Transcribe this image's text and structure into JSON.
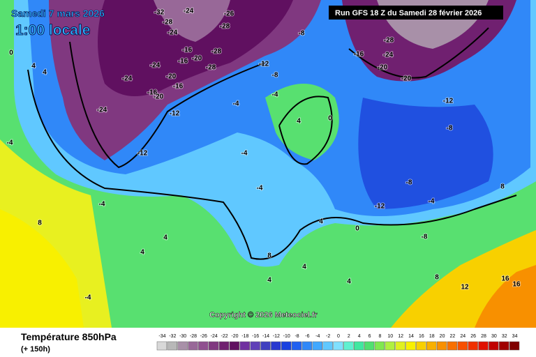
{
  "header": {
    "date": "Samedi 7 mars 2026",
    "time": "1:00 locale",
    "run": "Run GFS 18 Z du Samedi 28 février 2026"
  },
  "copyright": "Copyright © 2026 Meteociel.fr",
  "footer": {
    "title": "Température 850hPa",
    "lead": "(+ 150h)"
  },
  "legend": {
    "values": [
      -34,
      -32,
      -30,
      -28,
      -26,
      -24,
      -22,
      -20,
      -18,
      -16,
      -14,
      -12,
      -10,
      -8,
      -6,
      -4,
      -2,
      0,
      2,
      4,
      6,
      8,
      10,
      12,
      14,
      16,
      18,
      20,
      22,
      24,
      26,
      28,
      30,
      32,
      34
    ],
    "colors": [
      "#d8d8d8",
      "#b8b8b8",
      "#a890a8",
      "#986898",
      "#905090",
      "#803880",
      "#702070",
      "#601060",
      "#7030a0",
      "#6040b8",
      "#4040c0",
      "#2838d0",
      "#1840e0",
      "#2060f0",
      "#3088f8",
      "#40a8ff",
      "#60c8ff",
      "#80e0ff",
      "#60f0d0",
      "#40e8a0",
      "#50e070",
      "#80e850",
      "#b0f040",
      "#e0f020",
      "#f8f000",
      "#f8d000",
      "#f8b000",
      "#f89000",
      "#f87000",
      "#f85000",
      "#f03000",
      "#e01000",
      "#c00000",
      "#a00000",
      "#800000"
    ]
  },
  "contour_labels": [
    -32,
    -24,
    -26,
    -28,
    -28,
    -24,
    -8,
    -16,
    -20,
    -28,
    -16,
    -28,
    -12,
    -24,
    -20,
    -16,
    -24,
    -16,
    -20,
    -24,
    -12,
    -4,
    -8,
    -4,
    -12,
    -4,
    -16,
    -24,
    -20,
    -28,
    -20,
    -12,
    -8,
    -8,
    -12,
    -4,
    -4,
    -4,
    0,
    4,
    4,
    0,
    4,
    4,
    8,
    12,
    16,
    16,
    4,
    4,
    8,
    -4,
    -8,
    8,
    4,
    8,
    4,
    4,
    0,
    -4
  ]
}
